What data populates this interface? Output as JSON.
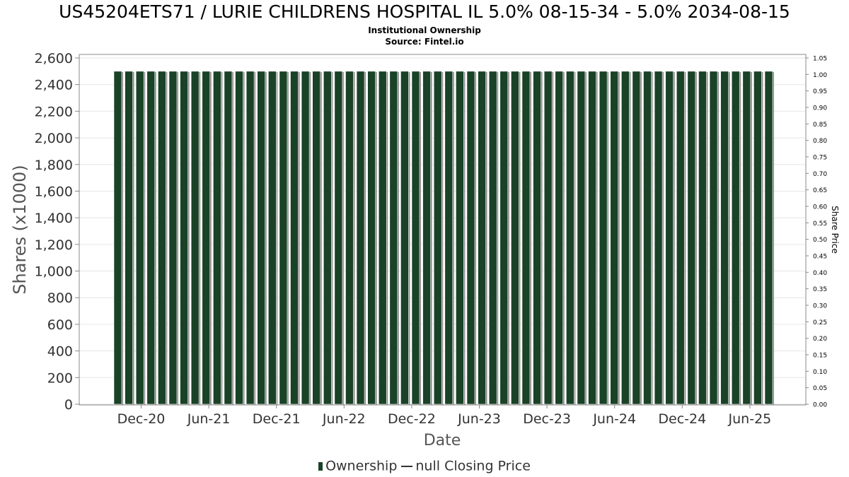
{
  "chart_data": {
    "type": "bar",
    "title": "US45204ETS71 / LURIE CHILDRENS HOSPITAL IL 5.0% 08-15-34 - 5.0% 2034-08-15",
    "subtitles": [
      "Institutional Ownership",
      "Source: Fintel.io"
    ],
    "xlabel": "Date",
    "ylabel": "Shares (x1000)",
    "y2label": "Share Price",
    "ylim": [
      0,
      2600
    ],
    "y2lim": [
      0,
      1.05
    ],
    "yticks": [
      "0",
      "200",
      "400",
      "600",
      "800",
      "1,000",
      "1,200",
      "1,400",
      "1,600",
      "1,800",
      "2,000",
      "2,200",
      "2,400",
      "2,600"
    ],
    "y2ticks": [
      "0.00",
      "0.05",
      "0.10",
      "0.15",
      "0.20",
      "0.25",
      "0.30",
      "0.35",
      "0.40",
      "0.45",
      "0.50",
      "0.55",
      "0.60",
      "0.65",
      "0.70",
      "0.75",
      "0.80",
      "0.85",
      "0.90",
      "0.95",
      "1.00",
      "1.05"
    ],
    "xtick_labels": [
      "Dec-20",
      "Jun-21",
      "Dec-21",
      "Jun-22",
      "Dec-22",
      "Jun-23",
      "Dec-23",
      "Jun-24",
      "Dec-24",
      "Jun-25"
    ],
    "series": [
      {
        "name": "Ownership",
        "color": "#1a4226",
        "values": [
          2500,
          2500,
          2500,
          2500,
          2500,
          2500,
          2500,
          2500,
          2500,
          2500,
          2500,
          2500,
          2500,
          2500,
          2500,
          2500,
          2500,
          2500,
          2500,
          2500,
          2500,
          2500,
          2500,
          2500,
          2500,
          2500,
          2500,
          2500,
          2500,
          2500,
          2500,
          2500,
          2500,
          2500,
          2500,
          2500,
          2500,
          2500,
          2500,
          2500,
          2500,
          2500,
          2500,
          2500,
          2500,
          2500,
          2500,
          2500,
          2500,
          2500,
          2500,
          2500,
          2500,
          2500,
          2500,
          2500,
          2500,
          2500,
          2500,
          2500
        ]
      },
      {
        "name": "null Closing Price",
        "color": "#333333",
        "values": []
      }
    ],
    "grid": true,
    "legend": "bottom-center"
  }
}
